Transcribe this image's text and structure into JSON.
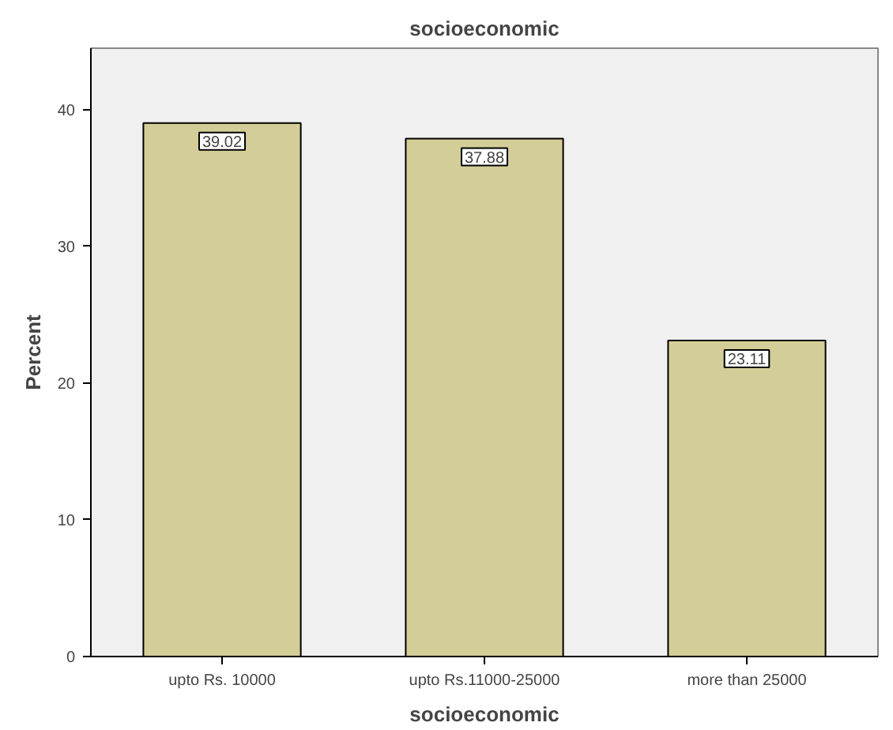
{
  "chart_data": {
    "type": "bar",
    "title": "socioeconomic",
    "xlabel": "socioeconomic",
    "ylabel": "Percent",
    "categories": [
      "upto Rs. 10000",
      "upto Rs.11000-25000",
      "more than 25000"
    ],
    "values": [
      39.02,
      37.88,
      23.11
    ],
    "color": "#d3ce97",
    "ylim": [
      0,
      44.5
    ],
    "yticks": [
      0,
      10,
      20,
      30,
      40
    ],
    "grid": false,
    "data_labels": true
  }
}
